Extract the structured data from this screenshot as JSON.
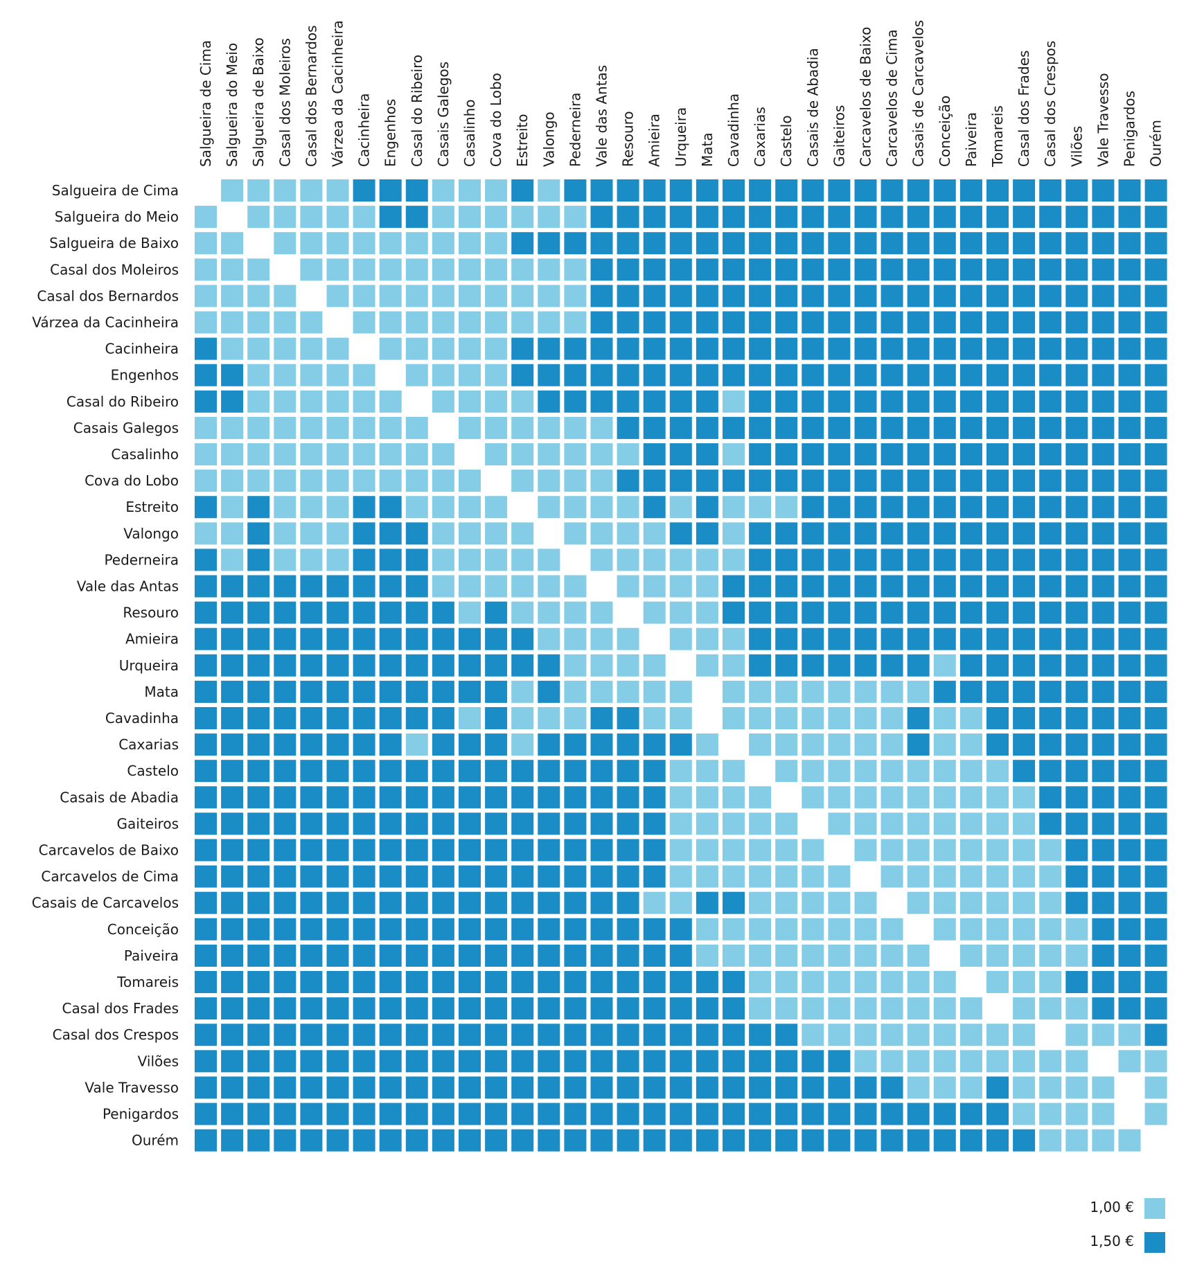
{
  "chart_data": {
    "type": "heatmap",
    "title": "",
    "labels": [
      "Salgueira de Cima",
      "Salgueira do Meio",
      "Salgueira de Baixo",
      "Casal dos Moleiros",
      "Casal dos Bernardos",
      "Várzea da Cacinheira",
      "Cacinheira",
      "Engenhos",
      "Casal do Ribeiro",
      "Casais Galegos",
      "Casalinho",
      "Cova do Lobo",
      "Estreito",
      "Valongo",
      "Pederneira",
      "Vale das Antas",
      "Resouro",
      "Amieira",
      "Urqueira",
      "Mata",
      "Cavadinha",
      "Caxarias",
      "Castelo",
      "Casais de Abadia",
      "Gaiteiros",
      "Carcavelos de Baixo",
      "Carcavelos de Cima",
      "Casais de Carcavelos",
      "Conceição",
      "Paiveira",
      "Tomareis",
      "Casal dos Frades",
      "Casal dos Crespos",
      "Vilões",
      "Vale Travesso",
      "Penigardos",
      "Ourém"
    ],
    "codes": {
      "L": "1,00 €",
      "D": "1,50 €",
      "-": "none"
    },
    "rows": [
      "-LLLLLDDDLLLDLDDDDDDDDDDDDDDDDDDDDDDD",
      "L-LLLLLDDLLLLLLDDDDDDDDDDDDDDDDDDDDDD",
      "LL-LLLLLLLLLDDDDDDDDDDDDDDDDDDDDDDDDD",
      "LLL-LLLLLLLLLLLDDDDDDDDDDDDDDDDDDDDDD",
      "LLLL-LLLLLLLLLLDDDDDDDDDDDDDDDDDDDDDD",
      "LLLLL-LLLLLLLLLDDDDDDDDDDDDDDDDDDDDDD",
      "DLLLLL-LLLLLDDDDDDDDDDDDDDDDDDDDDDDDD",
      "DDLLLLL-LLLLDDDDDDDDDDDDDDDDDDDDDDDDD",
      "DDLLLLLL-LLLLDDDDDDDLDDDDDDDDDDDDDDDD",
      "LLLLLLLLL-LLLLLLDDDDDDDDDDDDDDDDDDDDD",
      "LLLLLLLLLL-LLLLLLDDDLDDDDDDDDDDDDDDDD",
      "LLLLLLLLLLL-LLLLDDDDDDDDDDDDDDDDDDDDD",
      "DLDLLLDDLLLL-LLLLDLDLLLDDDDDDDDDDDDDD",
      "LLDLLLDDDLLLL-LLLLDDLDDDDDDDDDDDDDDDD",
      "DLDLLLDDDLLLLL-LLLLLLDDDDDDDDDDDDDDDD",
      "DDDDDDDDDLLLLLL-LLLLDDDDDDDDDDDDDDDDD",
      "DDDDDDDDDDLDLLLL-LLLDDDDDDDDDDDDDDDDD",
      "DDDDDDDDDDDDDLLLL-LLLDDDDDDDDDDDDDDDD",
      "DDDDDDDDDDDDDDLLLL-LLDDDDDDDLDDDDDDDD",
      "DDDDDDDDDDDDLDLLLLL-LLLLLLLLDDDDDDDDD",
      "DDDDDDDDDDLDLLLDDLL-LLLLLLLDLLDDDDDDD",
      "DDDDDDDDLDDDLDDDDDDL-LLLLLLDLLDDDDDDD",
      "DDDDDDDDDDDDDDDDDDLLL-LLLLLLLLLDDDDDD",
      "DDDDDDDDDDDDDDDDDDLLLL-LLLLLLLLLDDDDD",
      "DDDDDDDDDDDDDDDDDDLLLLL-LLLLLLLLDDDDD",
      "DDDDDDDDDDDDDDDDDDLLLLLL-LLLLLLLLDDDD",
      "DDDDDDDDDDDDDDDDDDLLLLLLL-LLLLLLLDDDD",
      "DDDDDDDDDDDDDDDDDLLDDLLLLL-LLLLLLDDDD",
      "DDDDDDDDDDDDDDDDDDDLLLLLLLL-LLLLLLDDD",
      "DDDDDDDDDDDDDDDDDDDLLLLLLLLL-LLLLLDDD",
      "DDDDDDDDDDDDDDDDDDDDDLLLLLLLL-LLLDDDD",
      "DDDDDDDDDDDDDDDDDDDDDLLLLLLLLL-LLLDDD",
      "DDDDDDDDDDDDDDDDDDDDDDDLLLLLLLLL-LLLD",
      "DDDDDDDDDDDDDDDDDDDDDDDDDLLLLLLLLL-LL",
      "DDDDDDDDDDDDDDDDDDDDDDDDDDDLLLDLLLL-L",
      "DDDDDDDDDDDDDDDDDDDDDDDDDDDDDDDLLLL-L",
      "DDDDDDDDDDDDDDDDDDDDDDDDDDDDDDDDLLLL-"
    ],
    "legend": [
      {
        "label": "1,00 €",
        "code": "L",
        "color": "#85cde6"
      },
      {
        "label": "1,50 €",
        "code": "D",
        "color": "#1a8dc7"
      }
    ],
    "legend_position": "bottom-right"
  },
  "colors": {
    "light": "#85cde6",
    "dark": "#1a8dc7",
    "text": "#1a1a1a"
  }
}
